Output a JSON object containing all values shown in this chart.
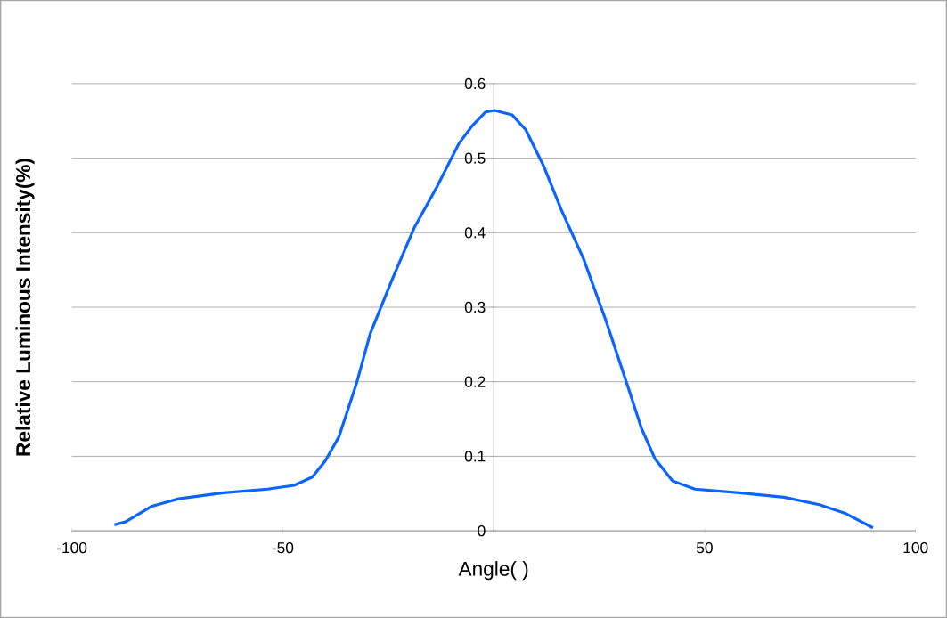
{
  "chart_data": {
    "type": "line",
    "xlabel": "Angle( )",
    "ylabel": "Relative Luminous Intensity(%)",
    "x": [
      -89.9,
      -87.3,
      -81,
      -74.7,
      -64.1,
      -53.6,
      -47.3,
      -43,
      -39.9,
      -36.7,
      -32.5,
      -29.3,
      -24,
      -18.8,
      -13.5,
      -8.2,
      -5,
      -1.9,
      0.2,
      4.4,
      7.6,
      11.8,
      16,
      21.3,
      26.6,
      31.9,
      35,
      38.2,
      42.4,
      47.7,
      58.2,
      68.8,
      77.2,
      83.5,
      89.9
    ],
    "series": [
      {
        "color": "#0a64ff",
        "values": [
          0.008,
          0.012,
          0.033,
          0.043,
          0.051,
          0.056,
          0.061,
          0.072,
          0.094,
          0.126,
          0.198,
          0.264,
          0.338,
          0.407,
          0.461,
          0.52,
          0.544,
          0.562,
          0.564,
          0.558,
          0.538,
          0.49,
          0.431,
          0.365,
          0.282,
          0.192,
          0.138,
          0.097,
          0.067,
          0.056,
          0.051,
          0.045,
          0.035,
          0.023,
          0.004
        ]
      }
    ],
    "xlim": [
      -100,
      100
    ],
    "ylim": [
      0,
      0.6
    ],
    "xticks": [
      -100,
      -50,
      {
        "value": 0,
        "label": null
      },
      50,
      100
    ],
    "yticks": [
      0,
      0.1,
      0.2,
      0.3,
      0.4,
      0.5,
      0.6
    ],
    "grid": "y",
    "marker": "none",
    "line_style": "solid"
  }
}
